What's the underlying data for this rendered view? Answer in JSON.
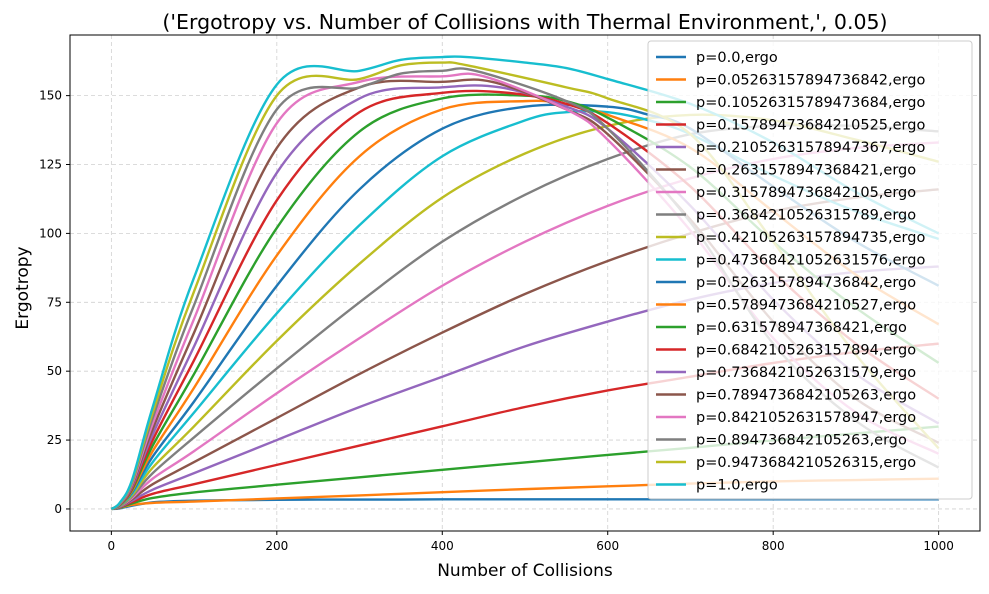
{
  "chart_data": {
    "type": "line",
    "title": "('Ergotropy vs. Number of Collisions with Thermal Environment,', 0.05)",
    "xlabel": "Number of Collisions",
    "ylabel": "Ergotropy",
    "xlim": [
      -50,
      1050
    ],
    "ylim": [
      -8,
      172
    ],
    "xticks": [
      0,
      200,
      400,
      600,
      800,
      1000
    ],
    "yticks": [
      0,
      25,
      50,
      75,
      100,
      125,
      150
    ],
    "grid": true,
    "legend_position": "top-right",
    "series": [
      {
        "name": "p=0.0,ergo",
        "color": "#1f77b4",
        "x": [
          0,
          10,
          25,
          50,
          75,
          100,
          150,
          200,
          250,
          300,
          350,
          400,
          450,
          500,
          550,
          600,
          650,
          700,
          750,
          800,
          850,
          900,
          950,
          1000
        ],
        "y": [
          0,
          0.2,
          1.2,
          2.4,
          2.8,
          3.0,
          3.2,
          3.3,
          3.4,
          3.4,
          3.4,
          3.5,
          3.5,
          3.5,
          3.5,
          3.5,
          3.5,
          3.5,
          3.5,
          3.5,
          3.5,
          3.5,
          3.5,
          3.5
        ]
      },
      {
        "name": "p=0.05263157894736842,ergo",
        "color": "#ff7f0e",
        "x": [
          0,
          10,
          25,
          50,
          100,
          200,
          300,
          400,
          500,
          600,
          700,
          800,
          900,
          1000
        ],
        "y": [
          0,
          0.4,
          1.5,
          2.2,
          2.7,
          3.8,
          4.9,
          6.1,
          7.2,
          8.2,
          9.2,
          10.0,
          10.5,
          11.0
        ]
      },
      {
        "name": "p=0.10526315789473684,ergo",
        "color": "#2ca02c",
        "x": [
          0,
          10,
          25,
          50,
          100,
          200,
          300,
          400,
          500,
          600,
          700,
          800,
          900,
          1000
        ],
        "y": [
          0,
          0.5,
          2.0,
          4.0,
          6.0,
          8.8,
          11.5,
          14.2,
          16.9,
          19.6,
          22.2,
          24.9,
          27.4,
          29.9
        ]
      },
      {
        "name": "p=0.15789473684210525,ergo",
        "color": "#d62728",
        "x": [
          0,
          10,
          25,
          50,
          100,
          200,
          300,
          400,
          500,
          600,
          700,
          800,
          900,
          1000
        ],
        "y": [
          0,
          0.6,
          2.5,
          5.5,
          9.0,
          16.0,
          23.0,
          30.0,
          37.0,
          43.0,
          48.0,
          53.0,
          57.0,
          60.0
        ]
      },
      {
        "name": "p=0.21052631578947367,ergo",
        "color": "#9467bd",
        "x": [
          0,
          10,
          25,
          50,
          100,
          200,
          300,
          400,
          500,
          600,
          700,
          800,
          900,
          1000
        ],
        "y": [
          0,
          0.7,
          3.0,
          7.0,
          13.0,
          25.0,
          37.0,
          48.0,
          59.0,
          68.0,
          76.0,
          82.0,
          86.0,
          88.0
        ]
      },
      {
        "name": "p=0.2631578947368421,ergo",
        "color": "#8c564b",
        "x": [
          0,
          10,
          25,
          50,
          100,
          200,
          300,
          400,
          500,
          600,
          700,
          800,
          900,
          1000
        ],
        "y": [
          0,
          0.8,
          3.5,
          9.0,
          17.0,
          33.0,
          49.0,
          64.0,
          78.0,
          90.0,
          100.0,
          108.0,
          113.0,
          116.0
        ]
      },
      {
        "name": "p=0.3157894736842105,ergo",
        "color": "#e377c2",
        "x": [
          0,
          10,
          25,
          50,
          100,
          200,
          300,
          400,
          500,
          600,
          700,
          800,
          900,
          1000
        ],
        "y": [
          0,
          0.9,
          4.0,
          11.0,
          21.0,
          42.0,
          62.0,
          81.0,
          97.0,
          110.0,
          120.0,
          127.0,
          131.0,
          133.0
        ]
      },
      {
        "name": "p=0.3684210526315789,ergo",
        "color": "#7f7f7f",
        "x": [
          0,
          10,
          25,
          50,
          100,
          200,
          300,
          400,
          500,
          600,
          700,
          800,
          900,
          1000
        ],
        "y": [
          0,
          1.0,
          4.5,
          13.0,
          26.0,
          51.0,
          75.0,
          97.0,
          114.0,
          127.0,
          136.0,
          139.0,
          139.0,
          137.0
        ]
      },
      {
        "name": "p=0.42105263157894735,ergo",
        "color": "#bcbd22",
        "x": [
          0,
          10,
          25,
          50,
          100,
          200,
          300,
          400,
          500,
          600,
          700,
          800,
          900,
          1000
        ],
        "y": [
          0,
          1.1,
          5.0,
          15.0,
          30.0,
          61.0,
          89.0,
          113.0,
          129.0,
          139.0,
          143.0,
          141.0,
          134.0,
          126.0
        ]
      },
      {
        "name": "p=0.47368421052631576,ergo",
        "color": "#17becf",
        "x": [
          0,
          10,
          25,
          50,
          100,
          200,
          300,
          400,
          500,
          550,
          600,
          650,
          700,
          800,
          900,
          1000
        ],
        "y": [
          0,
          1.2,
          5.5,
          17.0,
          35.0,
          71.0,
          103.0,
          128.0,
          141.0,
          144.0,
          144.0,
          141.0,
          136.0,
          121.0,
          108.0,
          98.0
        ]
      },
      {
        "name": "p=0.5263157894736842,ergo",
        "color": "#1f77b4",
        "x": [
          0,
          10,
          25,
          50,
          100,
          200,
          300,
          400,
          500,
          600,
          650,
          700,
          800,
          900,
          1000
        ],
        "y": [
          0,
          1.3,
          6.0,
          19.0,
          39.0,
          81.0,
          116.0,
          138.0,
          146.0,
          146.0,
          143.0,
          138.0,
          117.0,
          97.0,
          81.0
        ]
      },
      {
        "name": "p=0.5789473684210527,ergo",
        "color": "#ff7f0e",
        "x": [
          0,
          10,
          25,
          50,
          100,
          200,
          300,
          400,
          500,
          550,
          600,
          700,
          800,
          900,
          1000
        ],
        "y": [
          0,
          1.4,
          6.5,
          21.0,
          44.0,
          92.0,
          128.0,
          145.0,
          148.0,
          147.0,
          143.0,
          131.0,
          108.0,
          85.0,
          67.0
        ]
      },
      {
        "name": "p=0.631578947368421,ergo",
        "color": "#2ca02c",
        "x": [
          0,
          10,
          25,
          50,
          100,
          200,
          300,
          400,
          500,
          550,
          600,
          700,
          800,
          900,
          1000
        ],
        "y": [
          0,
          1.5,
          7.0,
          23.0,
          49.0,
          102.0,
          137.0,
          149.0,
          150.0,
          148.0,
          142.0,
          124.0,
          97.0,
          73.0,
          53.0
        ]
      },
      {
        "name": "p=0.6842105263157894,ergo",
        "color": "#d62728",
        "x": [
          0,
          10,
          25,
          50,
          100,
          200,
          300,
          400,
          480,
          550,
          600,
          700,
          800,
          900,
          1000
        ],
        "y": [
          0,
          1.6,
          7.5,
          25.0,
          54.0,
          112.0,
          144.0,
          151.0,
          151.0,
          147.0,
          140.0,
          117.0,
          86.0,
          60.0,
          40.0
        ]
      },
      {
        "name": "p=0.7368421052631579,ergo",
        "color": "#9467bd",
        "x": [
          0,
          10,
          25,
          50,
          100,
          200,
          300,
          400,
          470,
          550,
          600,
          700,
          800,
          900,
          1000
        ],
        "y": [
          0,
          1.7,
          8.0,
          27.0,
          59.0,
          122.0,
          149.0,
          153.0,
          153.0,
          146.0,
          138.0,
          110.0,
          76.0,
          49.0,
          31.0
        ]
      },
      {
        "name": "p=0.7894736842105263,ergo",
        "color": "#8c564b",
        "x": [
          0,
          10,
          25,
          50,
          100,
          200,
          300,
          400,
          460,
          550,
          600,
          700,
          800,
          900,
          1000
        ],
        "y": [
          0,
          1.8,
          8.5,
          29.0,
          64.0,
          131.0,
          153.0,
          155.0,
          155.0,
          145.0,
          136.0,
          105.0,
          68.0,
          40.0,
          24.0
        ]
      },
      {
        "name": "p=0.8421052631578947,ergo",
        "color": "#e377c2",
        "x": [
          0,
          10,
          25,
          50,
          100,
          200,
          300,
          400,
          450,
          550,
          600,
          700,
          800,
          900,
          1000
        ],
        "y": [
          0,
          1.9,
          9.0,
          31.0,
          69.0,
          140.0,
          155.0,
          157.0,
          157.0,
          145.0,
          134.0,
          101.0,
          62.0,
          35.0,
          20.0
        ]
      },
      {
        "name": "p=0.894736842105263,ergo",
        "color": "#7f7f7f",
        "x": [
          0,
          10,
          25,
          50,
          100,
          200,
          300,
          350,
          400,
          440,
          550,
          600,
          700,
          800,
          900,
          1000
        ],
        "y": [
          0,
          2.0,
          9.5,
          33.0,
          74.0,
          145.0,
          153.0,
          158.0,
          159.0,
          159.0,
          148.0,
          138.0,
          104.0,
          60.0,
          32.0,
          15.0
        ]
      },
      {
        "name": "p=0.9473684210526315,ergo",
        "color": "#bcbd22",
        "x": [
          0,
          10,
          25,
          50,
          100,
          200,
          300,
          350,
          400,
          430,
          550,
          600,
          700,
          800,
          900,
          1000
        ],
        "y": [
          0,
          2.1,
          10.0,
          35.0,
          79.0,
          150.0,
          156.0,
          161.0,
          162.0,
          161.0,
          153.0,
          149.0,
          136.0,
          97.0,
          56.0,
          22.0
        ]
      },
      {
        "name": "p=1.0,ergo",
        "color": "#17becf",
        "x": [
          0,
          10,
          25,
          50,
          100,
          200,
          300,
          350,
          400,
          430,
          500,
          550,
          600,
          700,
          800,
          900,
          1000
        ],
        "y": [
          0,
          2.2,
          10.5,
          37.0,
          84.0,
          154.0,
          159.0,
          163.0,
          164.0,
          164.0,
          162.0,
          160.0,
          156.0,
          147.0,
          133.0,
          115.0,
          100.0
        ]
      }
    ]
  }
}
